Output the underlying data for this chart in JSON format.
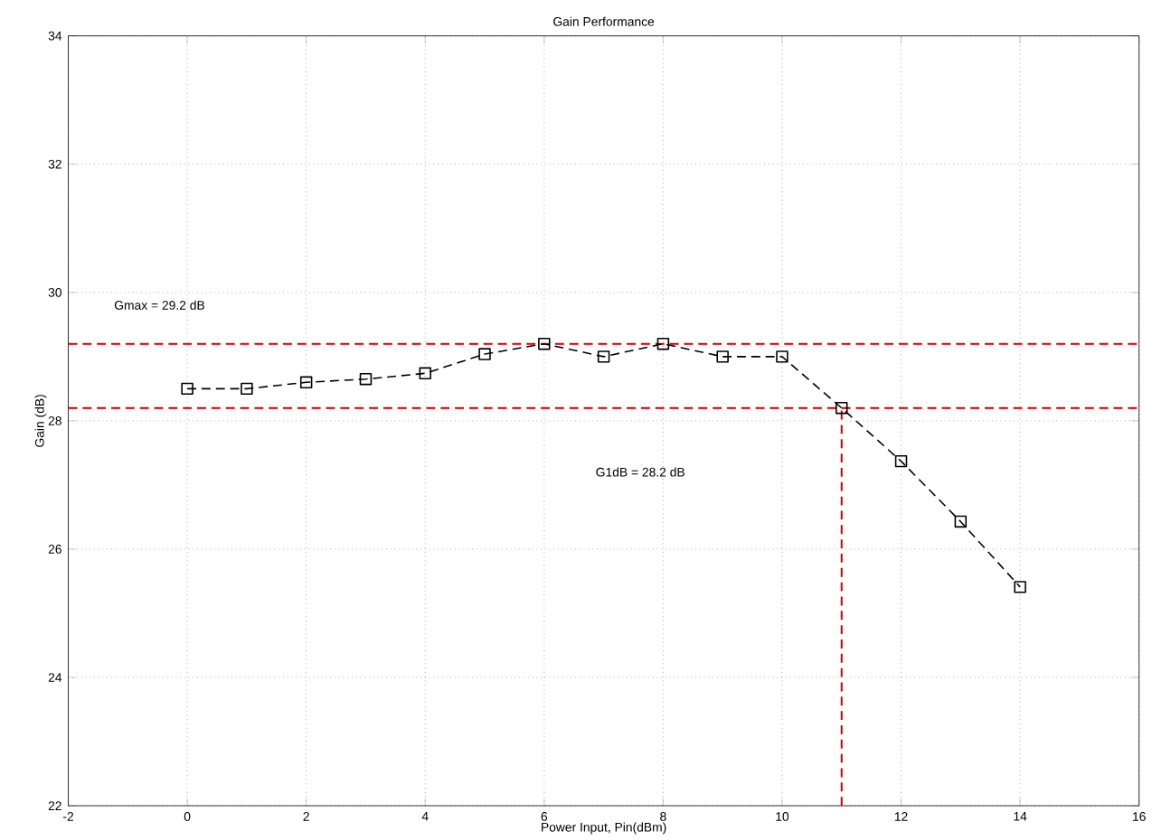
{
  "chart_data": {
    "type": "line",
    "title": "Gain Performance",
    "xlabel": "Power Input, Pin(dBm)",
    "ylabel": "Gain (dB)",
    "x": [
      0,
      1,
      2,
      3,
      4,
      5,
      6,
      7,
      8,
      9,
      10,
      11,
      12,
      13,
      14
    ],
    "series": [
      {
        "color": "#000000",
        "values": [
          28.5,
          28.5,
          28.6,
          28.65,
          28.74,
          29.04,
          29.2,
          29.0,
          29.2,
          29.0,
          29.0,
          28.2,
          27.37,
          26.43,
          25.41
        ],
        "marker": "square",
        "line_style": "dashed"
      },
      {
        "type": "line",
        "color": "#cc0000",
        "x": [
          11,
          11
        ],
        "values": [
          22,
          28.2
        ],
        "marker": "none",
        "line_style": "dashed"
      }
    ],
    "ref_lines": [
      {
        "axis": "y",
        "value": 29.2,
        "color": "#cc0000",
        "line_style": "dashed"
      },
      {
        "axis": "y",
        "value": 28.2,
        "color": "#cc0000",
        "line_style": "dashed"
      }
    ],
    "annotations": [
      "Gmax = 29.2 dB",
      "G1dB = 28.2 dB"
    ],
    "xlim": [
      -2,
      16
    ],
    "ylim": [
      22,
      34
    ],
    "xticks": [
      -2,
      0,
      2,
      4,
      6,
      8,
      10,
      12,
      14,
      16
    ],
    "yticks": [
      22,
      24,
      26,
      28,
      30,
      32,
      34
    ],
    "grid": true
  }
}
